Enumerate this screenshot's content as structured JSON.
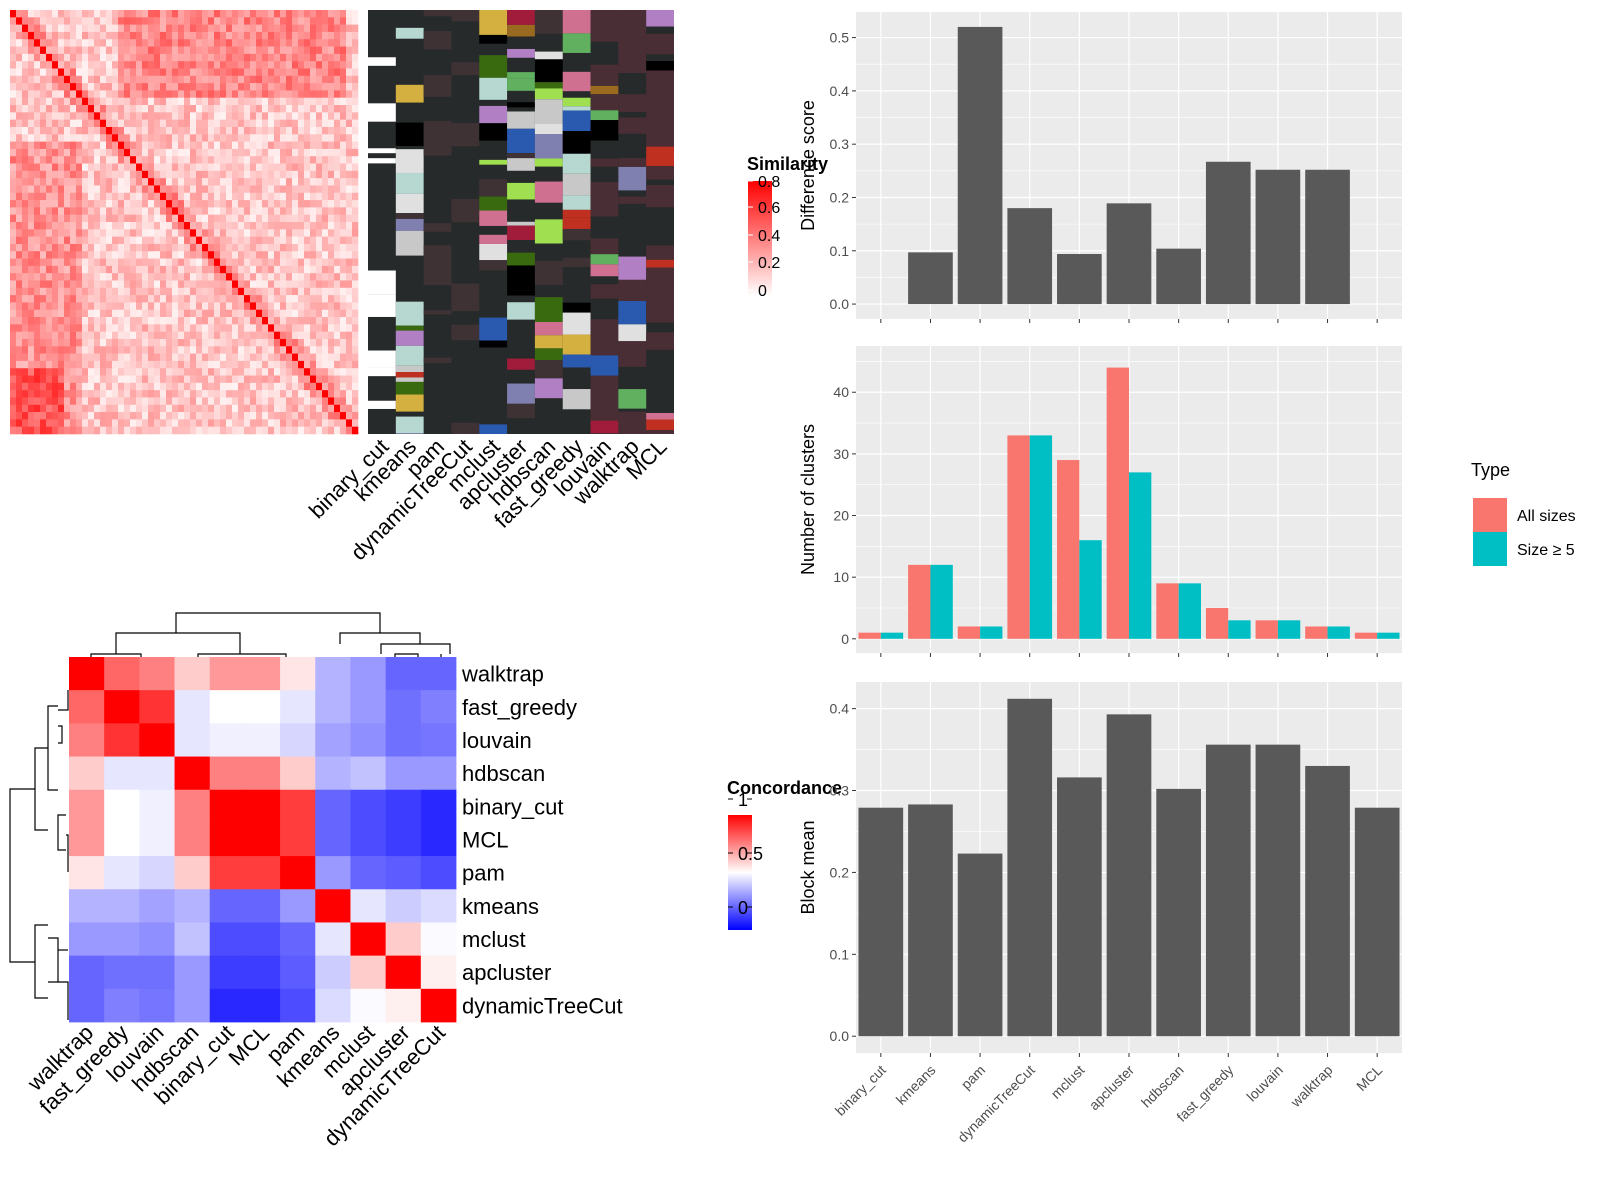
{
  "chart_data": [
    {
      "type": "heatmap",
      "description_role": "top-left similarity heatmap with clustering annotation columns",
      "legend_title": "Similarity",
      "legend_ticks": [
        "0",
        "0.2",
        "0.4",
        "0.6",
        "0.8"
      ],
      "colors": {
        "low": "#ffffff",
        "high": "#ff0000",
        "annotation_bg": "#262a2a"
      },
      "annotation_columns": [
        "binary_cut",
        "kmeans",
        "pam",
        "dynamicTreeCut",
        "mclust",
        "apcluster",
        "hdbscan",
        "fast_greedy",
        "louvain",
        "walktrap",
        "MCL"
      ]
    },
    {
      "type": "heatmap",
      "description_role": "bottom-left concordance heatmap",
      "legend_title": "Concordance",
      "legend_ticks": [
        "0",
        "0.5",
        "1"
      ],
      "colors": {
        "low": "#0000ff",
        "mid": "#ffffff",
        "high": "#ff0000"
      },
      "row_labels": [
        "walktrap",
        "fast_greedy",
        "louvain",
        "hdbscan",
        "binary_cut",
        "MCL",
        "pam",
        "kmeans",
        "mclust",
        "apcluster",
        "dynamicTreeCut"
      ],
      "col_labels": [
        "walktrap",
        "fast_greedy",
        "louvain",
        "hdbscan",
        "binary_cut",
        "MCL",
        "pam",
        "kmeans",
        "mclust",
        "apcluster",
        "dynamicTreeCut"
      ],
      "values": [
        [
          1.0,
          0.8,
          0.75,
          0.6,
          0.7,
          0.7,
          0.55,
          0.35,
          0.3,
          0.2,
          0.2
        ],
        [
          0.8,
          1.0,
          0.9,
          0.45,
          0.5,
          0.5,
          0.45,
          0.35,
          0.3,
          0.22,
          0.25
        ],
        [
          0.75,
          0.9,
          1.0,
          0.45,
          0.47,
          0.47,
          0.42,
          0.32,
          0.28,
          0.22,
          0.23
        ],
        [
          0.6,
          0.45,
          0.45,
          1.0,
          0.75,
          0.75,
          0.6,
          0.35,
          0.38,
          0.3,
          0.3
        ],
        [
          0.7,
          0.5,
          0.47,
          0.75,
          1.0,
          1.0,
          0.88,
          0.2,
          0.15,
          0.12,
          0.08
        ],
        [
          0.7,
          0.5,
          0.47,
          0.75,
          1.0,
          1.0,
          0.88,
          0.2,
          0.15,
          0.12,
          0.08
        ],
        [
          0.55,
          0.45,
          0.42,
          0.6,
          0.88,
          0.88,
          1.0,
          0.3,
          0.2,
          0.18,
          0.15
        ],
        [
          0.35,
          0.35,
          0.32,
          0.35,
          0.2,
          0.2,
          0.3,
          1.0,
          0.45,
          0.4,
          0.43
        ],
        [
          0.3,
          0.3,
          0.28,
          0.38,
          0.15,
          0.15,
          0.2,
          0.45,
          1.0,
          0.6,
          0.49
        ],
        [
          0.2,
          0.22,
          0.22,
          0.3,
          0.12,
          0.12,
          0.18,
          0.4,
          0.6,
          1.0,
          0.53
        ],
        [
          0.2,
          0.25,
          0.23,
          0.3,
          0.08,
          0.08,
          0.15,
          0.43,
          0.49,
          0.53,
          1.0
        ]
      ]
    },
    {
      "type": "bar",
      "ylabel": "Difference score",
      "categories": [
        "binary_cut",
        "kmeans",
        "pam",
        "dynamicTreeCut",
        "mclust",
        "apcluster",
        "hdbscan",
        "fast_greedy",
        "louvain",
        "walktrap",
        "MCL"
      ],
      "values": [
        0,
        0.097,
        0.52,
        0.18,
        0.094,
        0.189,
        0.104,
        0.267,
        0.252,
        0.252,
        0
      ],
      "ylim": [
        -0.028,
        0.548
      ],
      "yticks": [
        "0.0",
        "0.1",
        "0.2",
        "0.3",
        "0.4",
        "0.5"
      ],
      "grid": true,
      "bar_color": "#595959"
    },
    {
      "type": "bar",
      "ylabel": "Number of clusters",
      "categories": [
        "binary_cut",
        "kmeans",
        "pam",
        "dynamicTreeCut",
        "mclust",
        "apcluster",
        "hdbscan",
        "fast_greedy",
        "louvain",
        "walktrap",
        "MCL"
      ],
      "series": [
        {
          "name": "All sizes",
          "color": "#f8766d",
          "values": [
            1,
            12,
            2,
            33,
            29,
            44,
            9,
            5,
            3,
            2,
            1
          ]
        },
        {
          "name": "Size ≥ 5",
          "color": "#00bfc4",
          "values": [
            1,
            12,
            2,
            33,
            16,
            27,
            9,
            3,
            3,
            2,
            1
          ]
        }
      ],
      "ylim": [
        -2.3,
        47.5
      ],
      "yticks": [
        "0",
        "10",
        "20",
        "30",
        "40"
      ],
      "legend_title": "Type",
      "legend_position": "right",
      "grid": true
    },
    {
      "type": "bar",
      "ylabel": "Block mean",
      "categories": [
        "binary_cut",
        "kmeans",
        "pam",
        "dynamicTreeCut",
        "mclust",
        "apcluster",
        "hdbscan",
        "fast_greedy",
        "louvain",
        "walktrap",
        "MCL"
      ],
      "values": [
        0.279,
        0.283,
        0.223,
        0.412,
        0.316,
        0.393,
        0.302,
        0.356,
        0.356,
        0.33,
        0.279
      ],
      "ylim": [
        -0.0205,
        0.4325
      ],
      "yticks": [
        "0.0",
        "0.1",
        "0.2",
        "0.3",
        "0.4"
      ],
      "grid": true,
      "bar_color": "#595959"
    }
  ]
}
